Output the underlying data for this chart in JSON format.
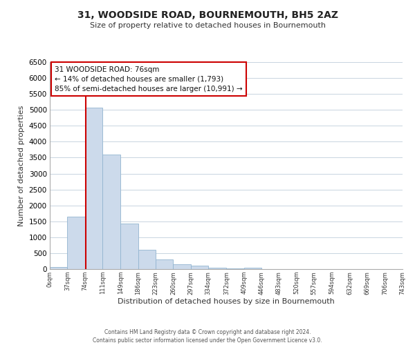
{
  "title": "31, WOODSIDE ROAD, BOURNEMOUTH, BH5 2AZ",
  "subtitle": "Size of property relative to detached houses in Bournemouth",
  "xlabel": "Distribution of detached houses by size in Bournemouth",
  "ylabel": "Number of detached properties",
  "bar_color": "#ccdaeb",
  "bar_edge_color": "#92b4d0",
  "background_color": "#ffffff",
  "grid_color": "#c8d4e0",
  "bin_edges": [
    0,
    37,
    74,
    111,
    149,
    186,
    223,
    260,
    297,
    334,
    372,
    409,
    446,
    483,
    520,
    557,
    594,
    632,
    669,
    706,
    743
  ],
  "bin_labels": [
    "0sqm",
    "37sqm",
    "74sqm",
    "111sqm",
    "149sqm",
    "186sqm",
    "223sqm",
    "260sqm",
    "297sqm",
    "334sqm",
    "372sqm",
    "409sqm",
    "446sqm",
    "483sqm",
    "520sqm",
    "557sqm",
    "594sqm",
    "632sqm",
    "669sqm",
    "706sqm",
    "743sqm"
  ],
  "bar_heights": [
    60,
    1650,
    5080,
    3600,
    1420,
    615,
    305,
    150,
    105,
    50,
    30,
    40,
    0,
    0,
    0,
    0,
    0,
    0,
    0,
    0
  ],
  "ylim": [
    0,
    6500
  ],
  "yticks": [
    0,
    500,
    1000,
    1500,
    2000,
    2500,
    3000,
    3500,
    4000,
    4500,
    5000,
    5500,
    6000,
    6500
  ],
  "xlim": [
    0,
    743
  ],
  "property_line_x": 76,
  "property_line_color": "#cc0000",
  "annotation_text_line1": "31 WOODSIDE ROAD: 76sqm",
  "annotation_text_line2": "← 14% of detached houses are smaller (1,793)",
  "annotation_text_line3": "85% of semi-detached houses are larger (10,991) →",
  "footer1": "Contains HM Land Registry data © Crown copyright and database right 2024.",
  "footer2": "Contains public sector information licensed under the Open Government Licence v3.0."
}
